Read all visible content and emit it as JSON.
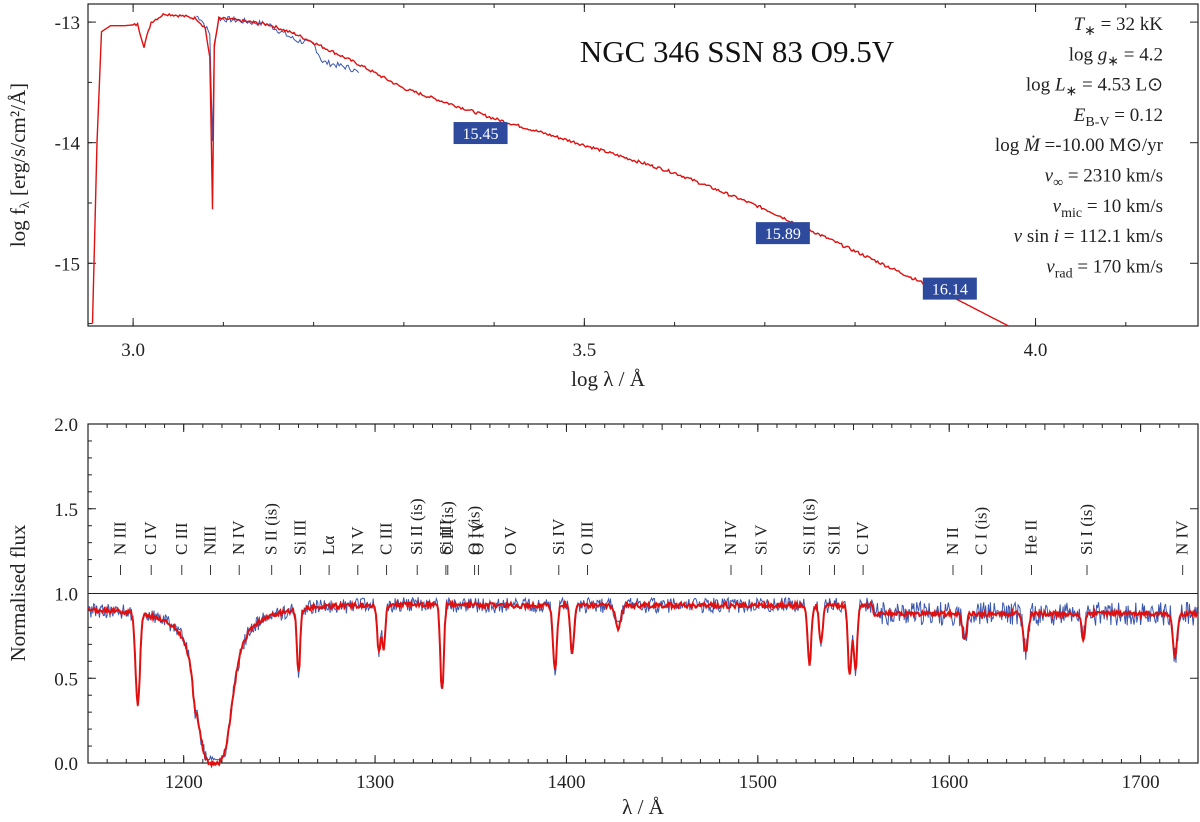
{
  "chart_data": [
    {
      "type": "line",
      "title": "NGC 346 SSN 83 O9.5V",
      "xlabel": "log λ / Å",
      "ylabel": "log f",
      "ylabel_sub": "λ",
      "ylabel_units": " [erg/s/cm²/Å]",
      "xlim": [
        2.95,
        4.18
      ],
      "ylim": [
        -15.52,
        -12.85
      ],
      "x_ticks": [
        3.0,
        3.5,
        4.0
      ],
      "x_tick_labels": [
        "3.0",
        "3.5",
        "4.0"
      ],
      "y_ticks": [
        -13,
        -14,
        -15
      ],
      "y_tick_labels": [
        "-13",
        "-14",
        "-15"
      ],
      "series": [
        {
          "name": "observed",
          "color": "#3b58b0",
          "x": [
            3.07,
            3.075,
            3.085,
            3.088,
            3.09,
            3.095,
            3.11,
            3.15,
            3.18,
            3.2,
            3.21,
            3.24,
            3.25
          ],
          "y": [
            -12.95,
            -12.97,
            -13.1,
            -14.0,
            -13.2,
            -12.97,
            -12.98,
            -13.02,
            -13.15,
            -13.18,
            -13.33,
            -13.38,
            -13.42
          ]
        },
        {
          "name": "model",
          "color": "#e01010",
          "x": [
            2.955,
            2.96,
            2.965,
            2.975,
            2.99,
            3.005,
            3.012,
            3.02,
            3.035,
            3.055,
            3.07,
            3.08,
            3.085,
            3.088,
            3.09,
            3.095,
            3.11,
            3.15,
            3.18,
            3.2,
            3.25,
            3.3,
            3.4,
            3.5,
            3.6,
            3.7,
            3.8,
            3.9,
            3.97
          ],
          "y": [
            -15.5,
            -14.0,
            -13.08,
            -13.03,
            -13.03,
            -13.02,
            -13.2,
            -13.0,
            -12.93,
            -12.95,
            -12.97,
            -13.05,
            -13.3,
            -14.55,
            -13.2,
            -12.97,
            -12.98,
            -13.02,
            -13.1,
            -13.17,
            -13.35,
            -13.55,
            -13.8,
            -14.02,
            -14.25,
            -14.55,
            -14.9,
            -15.25,
            -15.52
          ]
        }
      ],
      "annotations": [
        {
          "label": "15.45",
          "x": 3.385,
          "y": -13.92
        },
        {
          "label": "15.89",
          "x": 3.72,
          "y": -14.75
        },
        {
          "label": "16.14",
          "x": 3.905,
          "y": -15.21
        }
      ],
      "params": [
        {
          "sym": "T",
          "sub": "∗",
          "val": " = 32 kK"
        },
        {
          "pre": "log ",
          "sym": "g",
          "sub": "∗",
          "val": " =  4.2"
        },
        {
          "pre": "log ",
          "sym": "L",
          "sub": "∗",
          "val": " = 4.53 L",
          "suffix": "⊙"
        },
        {
          "sym": "E",
          "sub": "B-V",
          "val": " = 0.12"
        },
        {
          "pre": "log ",
          "sym": "Ṁ",
          "val": "  =-10.00 M",
          "suffix": "⊙/yr"
        },
        {
          "sym": "v",
          "sub": "∞",
          "val": " = 2310 km/s"
        },
        {
          "sym": "v",
          "sub": "mic",
          "val": " = 10 km/s"
        },
        {
          "sym": "v",
          "mid": " sin ",
          "sym2": "i",
          "val": " = 112.1 km/s"
        },
        {
          "sym": "v",
          "sub": "rad",
          "val": " = 170 km/s"
        }
      ]
    },
    {
      "type": "line",
      "title": "",
      "xlabel": "λ / Å",
      "ylabel": "Normalised flux",
      "xlim": [
        1150,
        1730
      ],
      "ylim": [
        0.0,
        2.0
      ],
      "x_ticks": [
        1200,
        1300,
        1400,
        1500,
        1600,
        1700
      ],
      "x_tick_labels": [
        "1200",
        "1300",
        "1400",
        "1500",
        "1600",
        "1700"
      ],
      "y_ticks": [
        0.0,
        0.5,
        1.0,
        1.5,
        2.0
      ],
      "y_tick_labels": [
        "0.0",
        "0.5",
        "1.0",
        "1.5",
        "2.0"
      ],
      "continuum": 1.0,
      "series": [
        {
          "name": "observed",
          "color": "#3b58b0"
        },
        {
          "name": "model",
          "color": "#e01010"
        }
      ],
      "absorption_lines": [
        {
          "x": 1176,
          "depth": 0.62,
          "width": 1.6
        },
        {
          "x": 1206,
          "depth": 0.25,
          "width": 1.5
        },
        {
          "x": 1260,
          "depth": 0.42,
          "width": 1.2
        },
        {
          "x": 1302,
          "depth": 0.3,
          "width": 1.2
        },
        {
          "x": 1304.5,
          "depth": 0.28,
          "width": 1.2
        },
        {
          "x": 1335,
          "depth": 0.55,
          "width": 1.3
        },
        {
          "x": 1394,
          "depth": 0.42,
          "width": 1.4
        },
        {
          "x": 1403,
          "depth": 0.3,
          "width": 1.4
        },
        {
          "x": 1427,
          "depth": 0.15,
          "width": 2.0
        },
        {
          "x": 1527,
          "depth": 0.38,
          "width": 1.3
        },
        {
          "x": 1533,
          "depth": 0.25,
          "width": 1.3
        },
        {
          "x": 1548,
          "depth": 0.45,
          "width": 1.3
        },
        {
          "x": 1551,
          "depth": 0.42,
          "width": 1.3
        },
        {
          "x": 1608,
          "depth": 0.18,
          "width": 1.4
        },
        {
          "x": 1640,
          "depth": 0.26,
          "width": 1.6
        },
        {
          "x": 1670,
          "depth": 0.18,
          "width": 1.2
        },
        {
          "x": 1718,
          "depth": 0.3,
          "width": 1.5
        }
      ],
      "line_ids": [
        {
          "label": "N III",
          "x": 1167,
          "color": "#222222"
        },
        {
          "label": "C IV",
          "x": 1183,
          "color": "#222222"
        },
        {
          "label": "C III",
          "x": 1199,
          "color": "#3a5aa6"
        },
        {
          "label": "NIII",
          "x": 1214,
          "color": "#222222"
        },
        {
          "label": "N IV",
          "x": 1229,
          "color": "#3a5aa6"
        },
        {
          "label": "S II (is)",
          "x": 1246,
          "color": "#222222"
        },
        {
          "label": "Si III",
          "x": 1261,
          "color": "#222222"
        },
        {
          "label": "Lα",
          "x": 1276,
          "color": "#222222"
        },
        {
          "label": "N V",
          "x": 1291,
          "color": "#3a5aa6"
        },
        {
          "label": "C III",
          "x": 1306,
          "color": "#222222"
        },
        {
          "label": "Si II (is)",
          "x": 1322,
          "color": "#222222"
        },
        {
          "label": "Si III",
          "x": 1337,
          "color": "#222222"
        },
        {
          "label": "O I (is)",
          "x": 1352,
          "color": "#222222"
        },
        {
          "label": "C II (is)",
          "x": 1338,
          "color": "#222222"
        },
        {
          "label": "O IV",
          "x": 1354,
          "color": "#3a5aa6"
        },
        {
          "label": "O V",
          "x": 1371,
          "color": "#222222"
        },
        {
          "label": "Si IV",
          "x": 1396,
          "color": "#3a5aa6"
        },
        {
          "label": "O III",
          "x": 1411,
          "color": "#222222"
        },
        {
          "label": "N IV",
          "x": 1486,
          "color": "#222222"
        },
        {
          "label": "Si V",
          "x": 1502,
          "color": "#222222"
        },
        {
          "label": "Si II (is)",
          "x": 1527,
          "color": "#222222"
        },
        {
          "label": "Si II",
          "x": 1540,
          "color": "#222222"
        },
        {
          "label": "C IV",
          "x": 1555,
          "color": "#3a5aa6"
        },
        {
          "label": "N II",
          "x": 1602,
          "color": "#222222"
        },
        {
          "label": "C I (is)",
          "x": 1617,
          "color": "#222222"
        },
        {
          "label": "He II",
          "x": 1643,
          "color": "#222222"
        },
        {
          "label": "Si I (is)",
          "x": 1672,
          "color": "#222222"
        },
        {
          "label": "N IV",
          "x": 1722,
          "color": "#222222"
        }
      ]
    }
  ]
}
